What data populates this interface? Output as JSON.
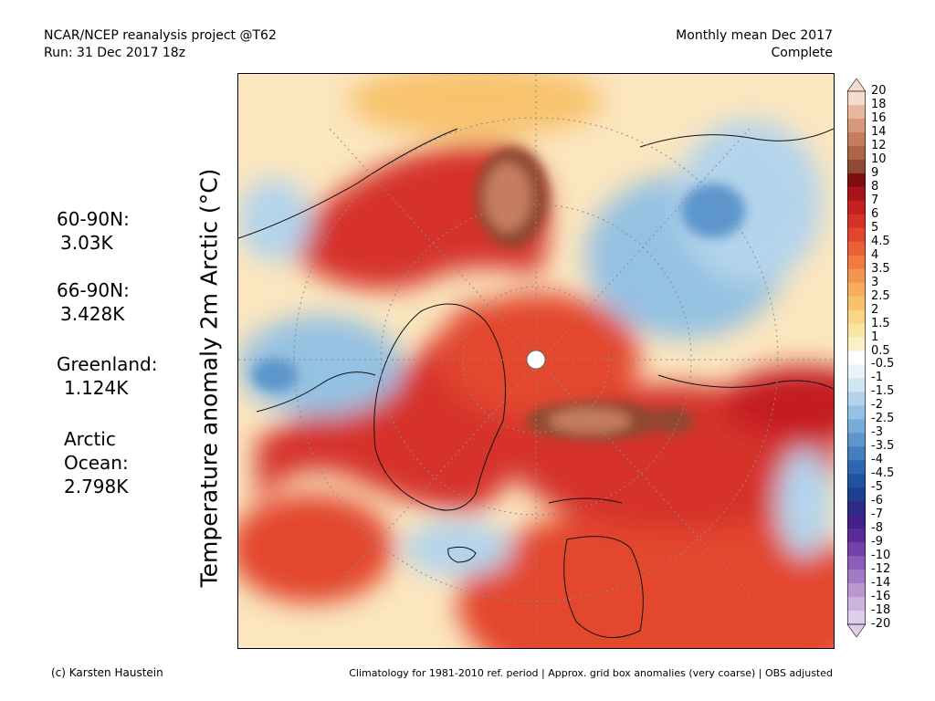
{
  "header": {
    "left_line1": "NCAR/NCEP reanalysis project @T62",
    "left_line2": "Run: 31 Dec 2017 18z",
    "right_line1": "Monthly mean Dec 2017",
    "right_line2": "Complete"
  },
  "y_title": "Temperature anomaly 2m Arctic (°C)",
  "stats": {
    "s1_label": "60-90N:",
    "s1_value": "3.03K",
    "s2_label": "66-90N:",
    "s2_value": "3.428K",
    "s3_label": "Greenland:",
    "s3_value": "1.124K",
    "s4_label1": "Arctic",
    "s4_label2": "Ocean:",
    "s4_value": "2.798K"
  },
  "colorbar": {
    "labels": [
      "20",
      "18",
      "16",
      "14",
      "12",
      "10",
      "9",
      "8",
      "7",
      "6",
      "5",
      "4.5",
      "4",
      "3.5",
      "3",
      "2.5",
      "2",
      "1.5",
      "1",
      "0.5",
      "-0.5",
      "-1",
      "-1.5",
      "-2",
      "-2.5",
      "-3",
      "-3.5",
      "-4",
      "-4.5",
      "-5",
      "-6",
      "-7",
      "-8",
      "-9",
      "-10",
      "-12",
      "-14",
      "-16",
      "-18",
      "-20"
    ],
    "colors": [
      "#f7dccd",
      "#e9b79d",
      "#d9987a",
      "#c57c5f",
      "#ad6448",
      "#8f4a33",
      "#7d0f12",
      "#a8141a",
      "#c51f21",
      "#d6322a",
      "#e3462f",
      "#ec5f37",
      "#f27a42",
      "#f5944f",
      "#f7ad5c",
      "#f8c26d",
      "#f9d585",
      "#fae5a4",
      "#fbf1c8",
      "#ffffff",
      "#eaf3fa",
      "#d0e6f4",
      "#b3d4ec",
      "#95c1e2",
      "#78acd8",
      "#5c96cc",
      "#437fbf",
      "#2f67b1",
      "#2152a0",
      "#1d3f8c",
      "#2d2b85",
      "#41208a",
      "#5a2a98",
      "#7443a9",
      "#8c5eb8",
      "#a47ac6",
      "#ba97d3",
      "#ceb3df",
      "#e0cdea"
    ]
  },
  "footer": {
    "left": "(c) Karsten Haustein",
    "right": "Climatology for 1981-2010 ref. period | Approx. grid box anomalies (very coarse) | OBS adjusted"
  }
}
